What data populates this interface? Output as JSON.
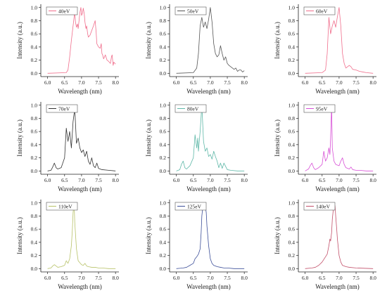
{
  "chart_data": [
    {
      "type": "line",
      "legend": "40eV",
      "color": "#f06e8c",
      "xlabel": "Wavelength (nm)",
      "ylabel": "Intensity (a.u.)",
      "xlim": [
        5.8,
        8.1
      ],
      "ylim": [
        -0.05,
        1.05
      ],
      "xticks": [
        "6.0",
        "6.5",
        "7.0",
        "7.5",
        "8.0"
      ],
      "yticks": [
        "0.0",
        "0.2",
        "0.4",
        "0.6",
        "0.8",
        "1.0"
      ],
      "x": [
        6.0,
        6.55,
        6.6,
        6.65,
        6.7,
        6.75,
        6.78,
        6.8,
        6.82,
        6.85,
        6.88,
        6.9,
        6.93,
        6.95,
        6.98,
        7.0,
        7.03,
        7.05,
        7.08,
        7.1,
        7.13,
        7.15,
        7.18,
        7.2,
        7.25,
        7.3,
        7.35,
        7.4,
        7.43,
        7.45,
        7.5,
        7.55,
        7.58,
        7.6,
        7.62,
        7.65,
        7.7,
        7.75,
        7.8,
        7.85,
        7.88,
        7.9,
        7.93,
        7.95,
        8.0
      ],
      "y": [
        0.0,
        0.01,
        0.05,
        0.25,
        0.5,
        0.72,
        0.85,
        0.95,
        0.78,
        0.7,
        0.75,
        0.68,
        0.82,
        0.92,
        1.0,
        0.88,
        0.92,
        0.99,
        0.9,
        0.78,
        0.68,
        0.72,
        0.6,
        0.55,
        0.58,
        0.65,
        0.72,
        0.8,
        0.62,
        0.45,
        0.4,
        0.38,
        0.45,
        0.3,
        0.28,
        0.22,
        0.28,
        0.2,
        0.18,
        0.15,
        0.25,
        0.28,
        0.12,
        0.17,
        0.14
      ]
    },
    {
      "type": "line",
      "legend": "50eV",
      "color": "#555555",
      "xlabel": "Wavelength (nm)",
      "ylabel": "Intensity (a.u.)",
      "xlim": [
        5.8,
        8.1
      ],
      "ylim": [
        -0.05,
        1.05
      ],
      "xticks": [
        "6.0",
        "6.5",
        "7.0",
        "7.5",
        "8.0"
      ],
      "yticks": [
        "0.0",
        "0.2",
        "0.4",
        "0.6",
        "0.8",
        "1.0"
      ],
      "x": [
        6.0,
        6.5,
        6.6,
        6.65,
        6.7,
        6.75,
        6.8,
        6.85,
        6.9,
        6.95,
        7.0,
        7.05,
        7.1,
        7.15,
        7.2,
        7.25,
        7.3,
        7.35,
        7.4,
        7.45,
        7.5,
        7.55,
        7.6,
        7.65,
        7.7,
        7.75,
        7.8,
        7.85,
        7.9,
        7.95,
        8.0
      ],
      "y": [
        0.0,
        0.01,
        0.08,
        0.3,
        0.72,
        0.85,
        0.7,
        0.78,
        0.68,
        0.82,
        1.0,
        0.78,
        0.45,
        0.3,
        0.25,
        0.28,
        0.42,
        0.3,
        0.2,
        0.25,
        0.15,
        0.12,
        0.1,
        0.08,
        0.06,
        0.08,
        0.03,
        0.05,
        0.05,
        0.02,
        0.04
      ]
    },
    {
      "type": "line",
      "legend": "60eV",
      "color": "#f06e8c",
      "xlabel": "Wavelength (nm)",
      "ylabel": "Intensity (a.u.)",
      "xlim": [
        5.8,
        8.1
      ],
      "ylim": [
        -0.05,
        1.05
      ],
      "xticks": [
        "6.0",
        "6.5",
        "7.0",
        "7.5",
        "8.0"
      ],
      "yticks": [
        "0.0",
        "0.2",
        "0.4",
        "0.6",
        "0.8",
        "1.0"
      ],
      "x": [
        6.0,
        6.5,
        6.6,
        6.65,
        6.7,
        6.75,
        6.8,
        6.85,
        6.9,
        6.95,
        7.0,
        7.05,
        7.1,
        7.15,
        7.2,
        7.25,
        7.3,
        7.35,
        7.4,
        7.5,
        7.6,
        7.7,
        7.8,
        8.0
      ],
      "y": [
        0.0,
        0.01,
        0.05,
        0.3,
        0.85,
        0.6,
        0.72,
        0.8,
        0.7,
        0.86,
        1.0,
        0.72,
        0.3,
        0.15,
        0.08,
        0.1,
        0.12,
        0.1,
        0.06,
        0.05,
        0.03,
        0.02,
        0.01,
        0.0
      ]
    },
    {
      "type": "line",
      "legend": "70eV",
      "color": "#333333",
      "xlabel": "Wavelength (nm)",
      "ylabel": "Intensity (a.u.)",
      "xlim": [
        5.8,
        8.1
      ],
      "ylim": [
        -0.05,
        1.05
      ],
      "xticks": [
        "6.0",
        "6.5",
        "7.0",
        "7.5",
        "8.0"
      ],
      "yticks": [
        "0.0",
        "0.2",
        "0.4",
        "0.6",
        "0.8",
        "1.0"
      ],
      "x": [
        6.0,
        6.1,
        6.15,
        6.2,
        6.25,
        6.3,
        6.4,
        6.5,
        6.55,
        6.6,
        6.65,
        6.7,
        6.75,
        6.8,
        6.85,
        6.9,
        6.95,
        7.0,
        7.05,
        7.1,
        7.15,
        7.2,
        7.25,
        7.3,
        7.35,
        7.4,
        7.45,
        7.5,
        7.6,
        7.8,
        8.0
      ],
      "y": [
        0.0,
        0.01,
        0.06,
        0.12,
        0.05,
        0.03,
        0.05,
        0.2,
        0.65,
        0.45,
        0.6,
        0.35,
        0.75,
        0.95,
        0.42,
        0.5,
        0.35,
        0.28,
        0.32,
        0.22,
        0.3,
        0.15,
        0.1,
        0.2,
        0.08,
        0.05,
        0.12,
        0.04,
        0.02,
        0.01,
        0.0
      ]
    },
    {
      "type": "line",
      "legend": "80eV",
      "color": "#5fb8a8",
      "xlabel": "Wavelength (nm)",
      "ylabel": "Intensity (a.u.)",
      "xlim": [
        5.8,
        8.1
      ],
      "ylim": [
        -0.05,
        1.05
      ],
      "xticks": [
        "6.0",
        "6.5",
        "7.0",
        "7.5",
        "8.0"
      ],
      "yticks": [
        "0.0",
        "0.2",
        "0.4",
        "0.6",
        "0.8",
        "1.0"
      ],
      "x": [
        6.0,
        6.1,
        6.15,
        6.2,
        6.25,
        6.3,
        6.4,
        6.5,
        6.55,
        6.6,
        6.63,
        6.65,
        6.7,
        6.75,
        6.8,
        6.85,
        6.9,
        6.95,
        7.0,
        7.05,
        7.1,
        7.15,
        7.2,
        7.25,
        7.3,
        7.35,
        7.4,
        7.5,
        7.6,
        7.8,
        8.0
      ],
      "y": [
        0.0,
        0.02,
        0.1,
        0.15,
        0.05,
        0.03,
        0.08,
        0.2,
        0.55,
        0.35,
        0.5,
        0.3,
        0.6,
        1.0,
        0.45,
        0.3,
        0.35,
        0.22,
        0.25,
        0.18,
        0.3,
        0.22,
        0.15,
        0.05,
        0.12,
        0.04,
        0.12,
        0.02,
        0.01,
        0.0,
        0.0
      ]
    },
    {
      "type": "line",
      "legend": "95eV",
      "color": "#d74fd6",
      "xlabel": "Wavelength (nm)",
      "ylabel": "Intensity (a.u.)",
      "xlim": [
        5.8,
        8.1
      ],
      "ylim": [
        -0.05,
        1.05
      ],
      "xticks": [
        "6.0",
        "6.5",
        "7.0",
        "7.5",
        "8.0"
      ],
      "yticks": [
        "0.0",
        "0.2",
        "0.4",
        "0.6",
        "0.8",
        "1.0"
      ],
      "x": [
        6.0,
        6.1,
        6.15,
        6.2,
        6.25,
        6.3,
        6.4,
        6.5,
        6.55,
        6.6,
        6.65,
        6.7,
        6.73,
        6.75,
        6.78,
        6.8,
        6.85,
        6.9,
        7.0,
        7.05,
        7.1,
        7.15,
        7.2,
        7.3,
        7.35,
        7.4,
        7.5,
        7.6,
        7.8,
        8.0
      ],
      "y": [
        0.0,
        0.03,
        0.08,
        0.12,
        0.05,
        0.02,
        0.05,
        0.1,
        0.3,
        0.15,
        0.2,
        0.35,
        0.25,
        0.5,
        1.0,
        0.35,
        0.15,
        0.1,
        0.08,
        0.15,
        0.2,
        0.1,
        0.05,
        0.03,
        0.06,
        0.02,
        0.01,
        0.01,
        0.0,
        0.0
      ]
    },
    {
      "type": "line",
      "legend": "110eV",
      "color": "#b8c268",
      "xlabel": "Wavelength (nm)",
      "ylabel": "Intensity (a.u.)",
      "xlim": [
        5.8,
        8.1
      ],
      "ylim": [
        -0.05,
        1.05
      ],
      "xticks": [
        "6.0",
        "6.5",
        "7.0",
        "7.5",
        "8.0"
      ],
      "yticks": [
        "0.0",
        "0.2",
        "0.4",
        "0.6",
        "0.8",
        "1.0"
      ],
      "x": [
        6.0,
        6.1,
        6.15,
        6.2,
        6.3,
        6.4,
        6.5,
        6.55,
        6.6,
        6.65,
        6.7,
        6.73,
        6.75,
        6.78,
        6.8,
        6.85,
        6.9,
        7.0,
        7.05,
        7.1,
        7.15,
        7.2,
        7.3,
        7.4,
        7.5,
        7.6,
        7.8,
        8.0
      ],
      "y": [
        0.0,
        0.01,
        0.04,
        0.06,
        0.02,
        0.03,
        0.05,
        0.12,
        0.08,
        0.15,
        0.35,
        0.6,
        0.85,
        1.0,
        0.7,
        0.3,
        0.12,
        0.06,
        0.05,
        0.08,
        0.04,
        0.03,
        0.02,
        0.02,
        0.01,
        0.01,
        0.0,
        0.0
      ]
    },
    {
      "type": "line",
      "legend": "125eV",
      "color": "#3d4f99",
      "xlabel": "Wavelength (nm)",
      "ylabel": "Intensity (a.u.)",
      "xlim": [
        5.8,
        8.1
      ],
      "ylim": [
        -0.05,
        1.05
      ],
      "xticks": [
        "6.0",
        "6.5",
        "7.0",
        "7.5",
        "8.0"
      ],
      "yticks": [
        "0.0",
        "0.2",
        "0.4",
        "0.6",
        "0.8",
        "1.0"
      ],
      "x": [
        6.0,
        6.2,
        6.3,
        6.4,
        6.5,
        6.55,
        6.6,
        6.65,
        6.7,
        6.73,
        6.75,
        6.78,
        6.8,
        6.83,
        6.85,
        6.88,
        6.9,
        6.95,
        7.0,
        7.05,
        7.1,
        7.2,
        7.3,
        7.4,
        7.5,
        7.7,
        8.0
      ],
      "y": [
        0.0,
        0.01,
        0.02,
        0.05,
        0.08,
        0.15,
        0.18,
        0.22,
        0.3,
        0.55,
        0.8,
        0.95,
        1.0,
        0.9,
        0.97,
        0.85,
        0.65,
        0.35,
        0.15,
        0.08,
        0.05,
        0.03,
        0.02,
        0.01,
        0.01,
        0.0,
        0.0
      ]
    },
    {
      "type": "line",
      "legend": "140eV",
      "color": "#c2506a",
      "xlabel": "Wavelength (nm)",
      "ylabel": "Intensity (a.u.)",
      "xlim": [
        5.8,
        8.1
      ],
      "ylim": [
        -0.05,
        1.05
      ],
      "xticks": [
        "6.0",
        "6.5",
        "7.0",
        "7.5",
        "8.0"
      ],
      "yticks": [
        "0.0",
        "0.2",
        "0.4",
        "0.6",
        "0.8",
        "1.0"
      ],
      "x": [
        6.0,
        6.2,
        6.3,
        6.4,
        6.5,
        6.6,
        6.65,
        6.7,
        6.73,
        6.75,
        6.78,
        6.8,
        6.83,
        6.85,
        6.88,
        6.9,
        6.93,
        6.95,
        7.0,
        7.05,
        7.1,
        7.2,
        7.3,
        7.5,
        8.0
      ],
      "y": [
        0.0,
        0.01,
        0.02,
        0.05,
        0.1,
        0.18,
        0.22,
        0.35,
        0.45,
        0.42,
        0.55,
        0.75,
        0.9,
        1.0,
        0.95,
        0.8,
        0.6,
        0.45,
        0.2,
        0.1,
        0.05,
        0.03,
        0.02,
        0.01,
        0.0
      ]
    }
  ]
}
